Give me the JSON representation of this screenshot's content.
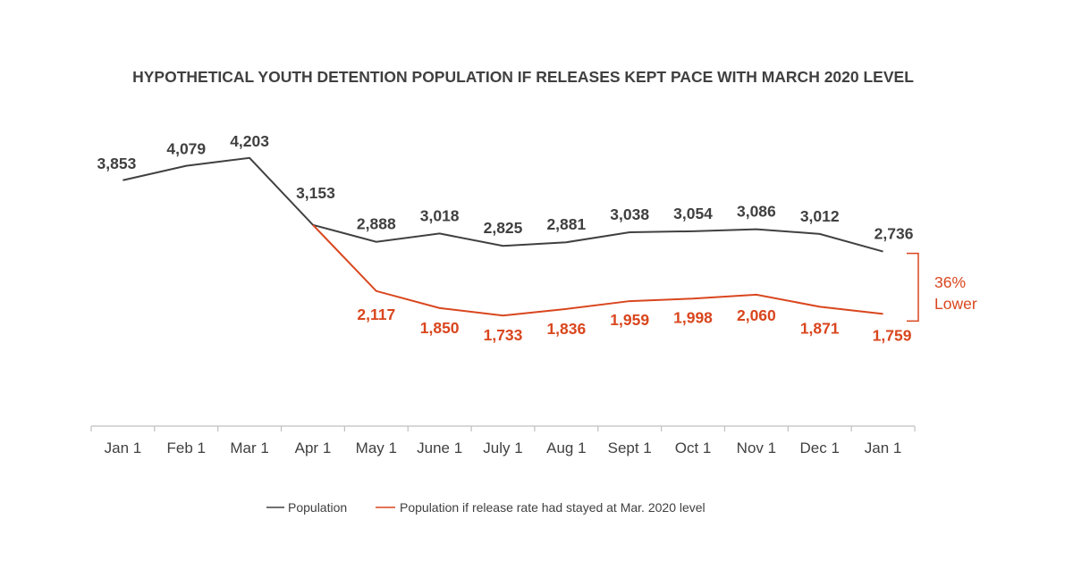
{
  "chart_data": {
    "type": "line",
    "title": "HYPOTHETICAL YOUTH DETENTION POPULATION IF RELEASES KEPT PACE WITH MARCH 2020 LEVEL",
    "xlabel": "",
    "ylabel": "",
    "ylim": [
      0,
      5000
    ],
    "grid": false,
    "categories": [
      "Jan 1",
      "Feb 1",
      "Mar 1",
      "Apr 1",
      "May 1",
      "June 1",
      "July 1",
      "Aug 1",
      "Sept 1",
      "Oct 1",
      "Nov 1",
      "Dec 1",
      "Jan 1"
    ],
    "series": [
      {
        "name": "Population",
        "color": "#404040",
        "values": [
          3853,
          4079,
          4203,
          3153,
          2888,
          3018,
          2825,
          2881,
          3038,
          3054,
          3086,
          3012,
          2736
        ],
        "labels": [
          "3,853",
          "4,079",
          "4,203",
          "3,153",
          "2,888",
          "3,018",
          "2,825",
          "2,881",
          "3,038",
          "3,054",
          "3,086",
          "3,012",
          "2,736"
        ]
      },
      {
        "name": "Population if release rate had stayed at Mar. 2020 level",
        "color": "#D9461E",
        "start_index": 3,
        "values": [
          null,
          null,
          null,
          3153,
          2117,
          1850,
          1733,
          1836,
          1959,
          1998,
          2060,
          1871,
          1759
        ],
        "labels": [
          null,
          null,
          null,
          null,
          "2,117",
          "1,850",
          "1,733",
          "1,836",
          "1,959",
          "1,998",
          "2,060",
          "1,871",
          "1,759"
        ]
      }
    ],
    "annotations": [
      {
        "text_line1": "36%",
        "text_line2": "Lower",
        "color": "#D9461E",
        "type": "bracket",
        "from_value": 2736,
        "to_value": 1759
      }
    ],
    "legend": {
      "placement": "bottom-center",
      "entries": [
        "Population",
        "Population if release rate had stayed at Mar. 2020 level"
      ]
    }
  }
}
